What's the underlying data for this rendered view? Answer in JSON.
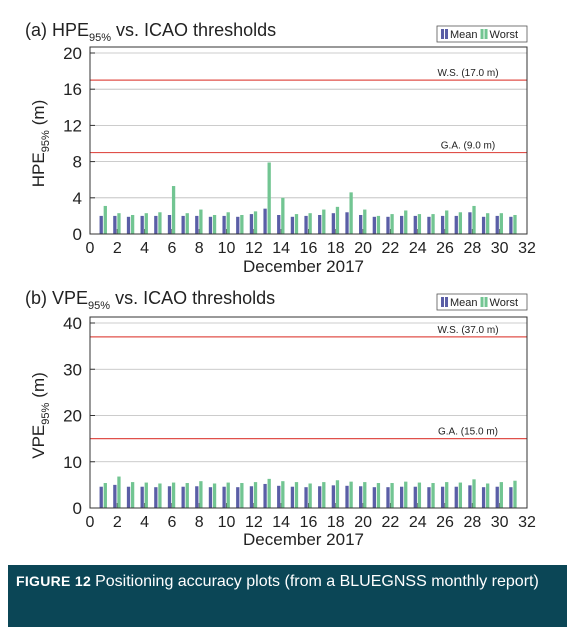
{
  "chart_data": [
    {
      "type": "bar",
      "title": [
        "(a) HPE",
        "95%",
        "vs. ICAO thresholds"
      ],
      "ylabel": [
        "HPE",
        "95%",
        "(m)"
      ],
      "xlabel": "December 2017",
      "x": [
        1,
        2,
        3,
        4,
        5,
        6,
        7,
        8,
        9,
        10,
        11,
        12,
        13,
        14,
        15,
        16,
        17,
        18,
        19,
        20,
        21,
        22,
        23,
        24,
        25,
        26,
        27,
        28,
        29,
        30,
        31
      ],
      "series": [
        {
          "name": "Mean",
          "color": "#5a5ea6",
          "values": [
            2.0,
            2.0,
            1.9,
            2.0,
            2.0,
            2.1,
            2.0,
            2.0,
            1.9,
            2.0,
            1.9,
            2.2,
            2.8,
            2.1,
            1.9,
            2.0,
            2.1,
            2.3,
            2.4,
            2.1,
            1.9,
            1.9,
            2.0,
            2.0,
            1.9,
            2.0,
            2.0,
            2.4,
            1.9,
            2.0,
            1.9
          ]
        },
        {
          "name": "Worst",
          "color": "#72c592",
          "values": [
            3.1,
            2.3,
            2.1,
            2.3,
            2.4,
            5.3,
            2.3,
            2.7,
            2.1,
            2.4,
            2.1,
            2.5,
            7.9,
            4.0,
            2.2,
            2.3,
            2.7,
            3.0,
            4.6,
            2.7,
            2.0,
            2.2,
            2.6,
            2.2,
            2.2,
            2.6,
            2.4,
            3.1,
            2.3,
            2.3,
            2.1
          ]
        }
      ],
      "thresholds": [
        {
          "value": 17,
          "label": "W.S. (17.0 m)"
        },
        {
          "value": 9,
          "label": "G.A. (9.0 m)"
        }
      ],
      "threshold_color": "#e0504a",
      "xlim": [
        0,
        32
      ],
      "xticks": [
        0,
        2,
        4,
        6,
        8,
        10,
        12,
        14,
        16,
        18,
        20,
        22,
        24,
        26,
        28,
        30,
        32
      ],
      "ylim": [
        0,
        20
      ],
      "yticks": [
        0,
        4,
        8,
        12,
        16,
        20
      ],
      "grid": true
    },
    {
      "type": "bar",
      "title": [
        "(b) VPE",
        "95%",
        "vs. ICAO thresholds"
      ],
      "ylabel": [
        "VPE",
        "95%",
        "(m)"
      ],
      "xlabel": "December 2017",
      "x": [
        1,
        2,
        3,
        4,
        5,
        6,
        7,
        8,
        9,
        10,
        11,
        12,
        13,
        14,
        15,
        16,
        17,
        18,
        19,
        20,
        21,
        22,
        23,
        24,
        25,
        26,
        27,
        28,
        29,
        30,
        31
      ],
      "series": [
        {
          "name": "Mean",
          "color": "#5a5ea6",
          "values": [
            4.6,
            5.0,
            4.6,
            4.6,
            4.5,
            4.7,
            4.6,
            4.7,
            4.5,
            4.6,
            4.5,
            4.7,
            5.2,
            4.8,
            4.6,
            4.5,
            4.7,
            4.9,
            4.8,
            4.7,
            4.5,
            4.5,
            4.6,
            4.6,
            4.5,
            4.6,
            4.6,
            4.9,
            4.5,
            4.6,
            4.5
          ]
        },
        {
          "name": "Worst",
          "color": "#72c592",
          "values": [
            5.4,
            6.8,
            5.6,
            5.5,
            5.3,
            5.5,
            5.4,
            5.8,
            5.3,
            5.5,
            5.4,
            5.6,
            6.3,
            5.8,
            5.6,
            5.3,
            5.6,
            6.0,
            5.7,
            5.6,
            5.4,
            5.4,
            5.7,
            5.5,
            5.4,
            5.6,
            5.5,
            6.2,
            5.3,
            5.6,
            5.9
          ]
        }
      ],
      "thresholds": [
        {
          "value": 37,
          "label": "W.S. (37.0 m)"
        },
        {
          "value": 15,
          "label": "G.A. (15.0 m)"
        }
      ],
      "threshold_color": "#e0504a",
      "xlim": [
        0,
        32
      ],
      "xticks": [
        0,
        2,
        4,
        6,
        8,
        10,
        12,
        14,
        16,
        18,
        20,
        22,
        24,
        26,
        28,
        30,
        32
      ],
      "ylim": [
        0,
        40
      ],
      "yticks": [
        0,
        10,
        20,
        30,
        40
      ],
      "grid": true
    }
  ],
  "caption": {
    "label": "FIGURE 12",
    "text": "Positioning accuracy plots (from a BLUEGNSS monthly report)"
  }
}
